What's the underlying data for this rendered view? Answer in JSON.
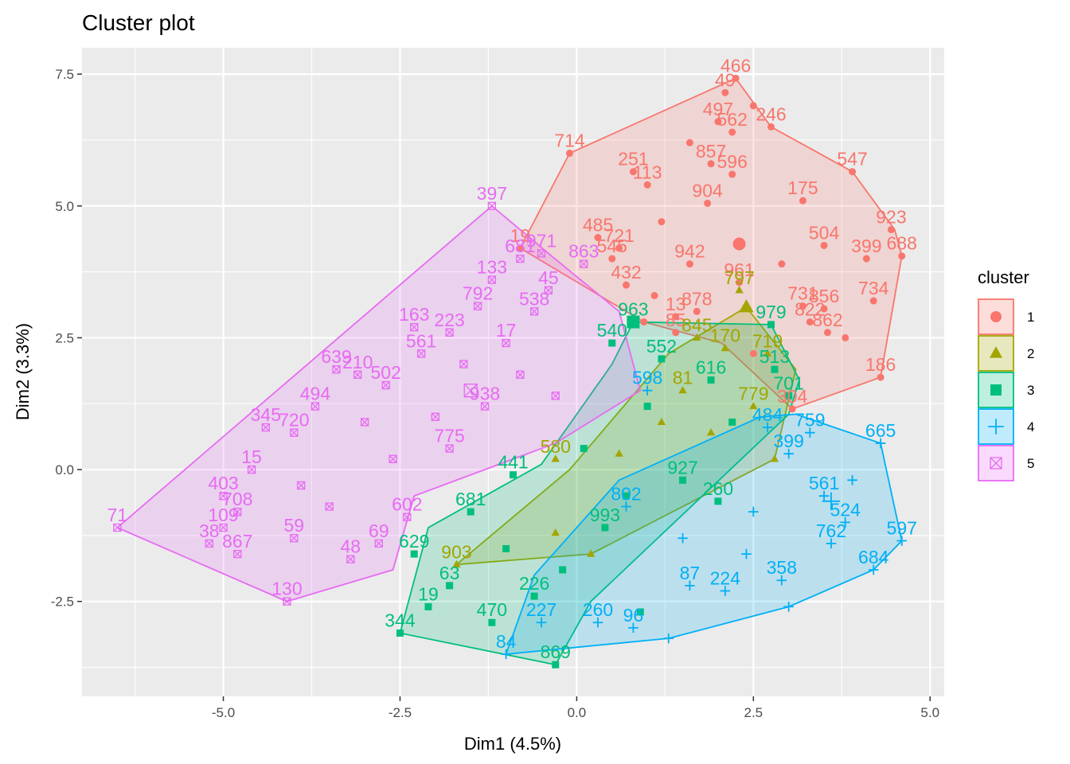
{
  "chart_data": {
    "type": "scatter",
    "title": "Cluster plot",
    "xlabel": "Dim1 (4.5%)",
    "ylabel": "Dim2 (3.3%)",
    "xlim": [
      -7.0,
      5.2
    ],
    "ylim": [
      -4.3,
      8.0
    ],
    "xticks": [
      -5.0,
      -2.5,
      0.0,
      2.5,
      5.0
    ],
    "xtick_labels": [
      "-5.0",
      "-2.5",
      "0.0",
      "2.5",
      "5.0"
    ],
    "yticks": [
      -2.5,
      0.0,
      2.5,
      5.0,
      7.5
    ],
    "ytick_labels": [
      "-2.5",
      "0.0",
      "2.5",
      "5.0",
      "7.5"
    ],
    "grid": true,
    "legend": {
      "title": "cluster",
      "placement": "right",
      "entries": [
        {
          "label": "1",
          "color": "#F8766D",
          "shape": "circle"
        },
        {
          "label": "2",
          "color": "#A3A500",
          "shape": "triangle"
        },
        {
          "label": "3",
          "color": "#00BF7D",
          "shape": "square"
        },
        {
          "label": "4",
          "color": "#00B0F6",
          "shape": "plus"
        },
        {
          "label": "5",
          "color": "#E76BF3",
          "shape": "boxed-x"
        }
      ]
    },
    "series": [
      {
        "name": "1",
        "color": "#F8766D",
        "centroid": [
          2.3,
          4.28
        ],
        "hull": [
          [
            2.25,
            7.42
          ],
          [
            2.75,
            6.5
          ],
          [
            3.9,
            5.65
          ],
          [
            4.5,
            4.55
          ],
          [
            4.6,
            4.05
          ],
          [
            4.3,
            1.75
          ],
          [
            3.05,
            1.15
          ],
          [
            2.05,
            2.4
          ],
          [
            0.95,
            2.8
          ],
          [
            -0.8,
            4.2
          ],
          [
            -0.1,
            6.0
          ]
        ],
        "points": [
          {
            "x": 2.25,
            "y": 7.42,
            "label": "466"
          },
          {
            "x": 2.1,
            "y": 7.15,
            "label": "49"
          },
          {
            "x": 2.75,
            "y": 6.5,
            "label": "246"
          },
          {
            "x": -0.1,
            "y": 6.0,
            "label": "714"
          },
          {
            "x": 2.0,
            "y": 6.6,
            "label": "497"
          },
          {
            "x": 2.2,
            "y": 6.4,
            "label": "562"
          },
          {
            "x": 0.8,
            "y": 5.65,
            "label": "251"
          },
          {
            "x": 1.0,
            "y": 5.4,
            "label": "113"
          },
          {
            "x": 1.9,
            "y": 5.8,
            "label": "857"
          },
          {
            "x": 2.2,
            "y": 5.6,
            "label": "596"
          },
          {
            "x": 3.9,
            "y": 5.65,
            "label": "547"
          },
          {
            "x": 3.2,
            "y": 5.1,
            "label": "175"
          },
          {
            "x": 1.85,
            "y": 5.05,
            "label": "904"
          },
          {
            "x": 4.45,
            "y": 4.55,
            "label": "923"
          },
          {
            "x": 4.6,
            "y": 4.05,
            "label": "688"
          },
          {
            "x": 3.5,
            "y": 4.25,
            "label": "504"
          },
          {
            "x": 4.1,
            "y": 4.0,
            "label": "399"
          },
          {
            "x": 0.3,
            "y": 4.4,
            "label": "485"
          },
          {
            "x": 0.6,
            "y": 4.2,
            "label": "721"
          },
          {
            "x": 0.5,
            "y": 4.0,
            "label": "545"
          },
          {
            "x": -0.8,
            "y": 4.2,
            "label": "19"
          },
          {
            "x": 1.6,
            "y": 3.9,
            "label": "942"
          },
          {
            "x": 2.3,
            "y": 3.55,
            "label": "961"
          },
          {
            "x": 4.2,
            "y": 3.2,
            "label": "734"
          },
          {
            "x": 0.7,
            "y": 3.5,
            "label": "432"
          },
          {
            "x": 3.2,
            "y": 3.1,
            "label": "731"
          },
          {
            "x": 3.5,
            "y": 3.05,
            "label": "856"
          },
          {
            "x": 3.3,
            "y": 2.8,
            "label": "822"
          },
          {
            "x": 3.55,
            "y": 2.6,
            "label": "862"
          },
          {
            "x": 1.7,
            "y": 3.0,
            "label": "878"
          },
          {
            "x": 1.4,
            "y": 2.9,
            "label": "13"
          },
          {
            "x": 1.4,
            "y": 2.6,
            "label": "85"
          },
          {
            "x": 4.3,
            "y": 1.75,
            "label": "186"
          },
          {
            "x": 3.05,
            "y": 1.15,
            "label": "304"
          },
          {
            "x": 0.95,
            "y": 2.8,
            "label": ""
          },
          {
            "x": 2.5,
            "y": 2.2,
            "label": ""
          },
          {
            "x": 1.6,
            "y": 6.2,
            "label": ""
          },
          {
            "x": 2.5,
            "y": 6.9,
            "label": ""
          },
          {
            "x": 1.2,
            "y": 4.7,
            "label": ""
          },
          {
            "x": 3.8,
            "y": 2.5,
            "label": ""
          },
          {
            "x": 2.9,
            "y": 3.9,
            "label": ""
          },
          {
            "x": 1.1,
            "y": 3.3,
            "label": ""
          }
        ]
      },
      {
        "name": "2",
        "color": "#A3A500",
        "centroid": [
          2.4,
          3.08
        ],
        "hull": [
          [
            2.4,
            3.08
          ],
          [
            3.1,
            1.9
          ],
          [
            2.8,
            0.2
          ],
          [
            0.2,
            -1.6
          ],
          [
            -1.7,
            -1.8
          ],
          [
            -0.1,
            0.0
          ],
          [
            1.3,
            2.2
          ]
        ],
        "points": [
          {
            "x": 2.3,
            "y": 3.4,
            "label": "797"
          },
          {
            "x": 1.7,
            "y": 2.5,
            "label": "845"
          },
          {
            "x": 2.1,
            "y": 2.3,
            "label": "170"
          },
          {
            "x": 2.7,
            "y": 2.2,
            "label": "719"
          },
          {
            "x": 1.5,
            "y": 1.5,
            "label": "81"
          },
          {
            "x": 2.5,
            "y": 1.2,
            "label": "779"
          },
          {
            "x": 1.2,
            "y": 0.9,
            "label": ""
          },
          {
            "x": 0.6,
            "y": 0.3,
            "label": ""
          },
          {
            "x": -0.3,
            "y": -1.2,
            "label": ""
          },
          {
            "x": -1.7,
            "y": -1.8,
            "label": "903"
          },
          {
            "x": 0.2,
            "y": -1.6,
            "label": ""
          },
          {
            "x": -0.3,
            "y": 0.2,
            "label": "580"
          },
          {
            "x": 1.9,
            "y": 0.7,
            "label": ""
          },
          {
            "x": 2.8,
            "y": 0.2,
            "label": ""
          }
        ]
      },
      {
        "name": "3",
        "color": "#00BF7D",
        "centroid": [
          0.8,
          2.8
        ],
        "hull": [
          [
            0.8,
            2.8
          ],
          [
            2.75,
            2.75
          ],
          [
            3.15,
            1.7
          ],
          [
            3.0,
            1.05
          ],
          [
            0.2,
            -2.5
          ],
          [
            -0.3,
            -3.7
          ],
          [
            -2.5,
            -3.1
          ],
          [
            -2.1,
            -1.1
          ],
          [
            -0.5,
            0.1
          ],
          [
            0.5,
            2.0
          ]
        ],
        "points": [
          {
            "x": 2.75,
            "y": 2.75,
            "label": "979"
          },
          {
            "x": 0.8,
            "y": 2.8,
            "label": "963"
          },
          {
            "x": 0.5,
            "y": 2.4,
            "label": "540"
          },
          {
            "x": 1.2,
            "y": 2.1,
            "label": "552"
          },
          {
            "x": 2.8,
            "y": 1.9,
            "label": "513"
          },
          {
            "x": 3.0,
            "y": 1.4,
            "label": "701"
          },
          {
            "x": 1.9,
            "y": 1.7,
            "label": "616"
          },
          {
            "x": 0.1,
            "y": 0.4,
            "label": ""
          },
          {
            "x": 1.5,
            "y": -0.2,
            "label": "927"
          },
          {
            "x": 0.4,
            "y": -1.1,
            "label": "993"
          },
          {
            "x": -1.5,
            "y": -0.8,
            "label": "681"
          },
          {
            "x": -0.9,
            "y": -0.1,
            "label": "441"
          },
          {
            "x": -2.5,
            "y": -3.1,
            "label": "344"
          },
          {
            "x": -2.1,
            "y": -2.6,
            "label": "19"
          },
          {
            "x": -0.3,
            "y": -3.7,
            "label": "869"
          },
          {
            "x": -2.3,
            "y": -1.6,
            "label": "629"
          },
          {
            "x": -1.8,
            "y": -2.2,
            "label": "63"
          },
          {
            "x": -1.2,
            "y": -2.9,
            "label": "470"
          },
          {
            "x": -0.6,
            "y": -2.4,
            "label": "226"
          },
          {
            "x": 0.9,
            "y": -2.7,
            "label": ""
          },
          {
            "x": 2.2,
            "y": 0.9,
            "label": ""
          },
          {
            "x": 1.0,
            "y": 1.2,
            "label": ""
          },
          {
            "x": -0.2,
            "y": -1.9,
            "label": ""
          },
          {
            "x": 0.7,
            "y": -0.5,
            "label": ""
          },
          {
            "x": -1.0,
            "y": -1.5,
            "label": ""
          },
          {
            "x": 2.0,
            "y": -0.6,
            "label": "260"
          }
        ]
      },
      {
        "name": "4",
        "color": "#00B0F6",
        "centroid": [
          3.6,
          -0.6
        ],
        "hull": [
          [
            3.1,
            1.05
          ],
          [
            4.3,
            0.5
          ],
          [
            4.6,
            -1.35
          ],
          [
            4.2,
            -1.9
          ],
          [
            3.0,
            -2.6
          ],
          [
            1.3,
            -3.2
          ],
          [
            -1.0,
            -3.5
          ],
          [
            -0.6,
            -2.0
          ],
          [
            0.6,
            -0.2
          ],
          [
            2.6,
            1.0
          ]
        ],
        "points": [
          {
            "x": 4.3,
            "y": 0.5,
            "label": "665"
          },
          {
            "x": 3.3,
            "y": 0.7,
            "label": "759"
          },
          {
            "x": 3.0,
            "y": 0.3,
            "label": "399"
          },
          {
            "x": 2.7,
            "y": 0.8,
            "label": "484"
          },
          {
            "x": 4.6,
            "y": -1.35,
            "label": "597"
          },
          {
            "x": 4.2,
            "y": -1.9,
            "label": "684"
          },
          {
            "x": 3.8,
            "y": -1.0,
            "label": "524"
          },
          {
            "x": 3.5,
            "y": -0.5,
            "label": "561"
          },
          {
            "x": 3.6,
            "y": -1.4,
            "label": "762"
          },
          {
            "x": 2.9,
            "y": -2.1,
            "label": "358"
          },
          {
            "x": 2.1,
            "y": -2.3,
            "label": "224"
          },
          {
            "x": 1.6,
            "y": -2.2,
            "label": "87"
          },
          {
            "x": 0.3,
            "y": -2.9,
            "label": "260"
          },
          {
            "x": 0.8,
            "y": -3.0,
            "label": "96"
          },
          {
            "x": -1.0,
            "y": -3.5,
            "label": "84"
          },
          {
            "x": -0.5,
            "y": -2.9,
            "label": "227"
          },
          {
            "x": 3.0,
            "y": -2.6,
            "label": ""
          },
          {
            "x": 1.3,
            "y": -3.2,
            "label": ""
          },
          {
            "x": 1.0,
            "y": 1.5,
            "label": "598"
          },
          {
            "x": 2.5,
            "y": -0.8,
            "label": ""
          },
          {
            "x": 1.5,
            "y": -1.3,
            "label": ""
          },
          {
            "x": 0.7,
            "y": -0.7,
            "label": "802"
          },
          {
            "x": 3.9,
            "y": -0.2,
            "label": ""
          },
          {
            "x": 2.4,
            "y": -1.6,
            "label": ""
          }
        ]
      },
      {
        "name": "5",
        "color": "#E76BF3",
        "centroid": [
          -1.5,
          1.5
        ],
        "hull": [
          [
            -1.2,
            5.0
          ],
          [
            -0.4,
            4.1
          ],
          [
            0.6,
            3.0
          ],
          [
            0.9,
            1.5
          ],
          [
            -0.3,
            0.5
          ],
          [
            -2.3,
            -0.5
          ],
          [
            -2.6,
            -1.9
          ],
          [
            -4.1,
            -2.5
          ],
          [
            -6.5,
            -1.1
          ]
        ],
        "points": [
          {
            "x": -1.2,
            "y": 5.0,
            "label": "397"
          },
          {
            "x": -0.5,
            "y": 4.1,
            "label": "971"
          },
          {
            "x": -0.8,
            "y": 4.0,
            "label": "681"
          },
          {
            "x": 0.1,
            "y": 3.9,
            "label": "863"
          },
          {
            "x": -1.2,
            "y": 3.6,
            "label": "133"
          },
          {
            "x": -1.4,
            "y": 3.1,
            "label": "792"
          },
          {
            "x": -0.4,
            "y": 3.4,
            "label": "45"
          },
          {
            "x": -0.6,
            "y": 3.0,
            "label": "538"
          },
          {
            "x": -2.3,
            "y": 2.7,
            "label": "163"
          },
          {
            "x": -1.8,
            "y": 2.6,
            "label": "223"
          },
          {
            "x": -2.2,
            "y": 2.2,
            "label": "561"
          },
          {
            "x": -1.0,
            "y": 2.4,
            "label": "17"
          },
          {
            "x": -3.4,
            "y": 1.9,
            "label": "639"
          },
          {
            "x": -3.1,
            "y": 1.8,
            "label": "210"
          },
          {
            "x": -3.7,
            "y": 1.2,
            "label": "494"
          },
          {
            "x": -2.7,
            "y": 1.6,
            "label": "502"
          },
          {
            "x": -4.4,
            "y": 0.8,
            "label": "345"
          },
          {
            "x": -4.0,
            "y": 0.7,
            "label": "720"
          },
          {
            "x": -1.3,
            "y": 1.2,
            "label": "938"
          },
          {
            "x": -1.8,
            "y": 0.4,
            "label": "775"
          },
          {
            "x": -4.6,
            "y": 0.0,
            "label": "15"
          },
          {
            "x": -5.0,
            "y": -0.5,
            "label": "403"
          },
          {
            "x": -4.8,
            "y": -0.8,
            "label": "708"
          },
          {
            "x": -5.0,
            "y": -1.1,
            "label": "109"
          },
          {
            "x": -5.2,
            "y": -1.4,
            "label": "38"
          },
          {
            "x": -4.8,
            "y": -1.6,
            "label": "867"
          },
          {
            "x": -6.5,
            "y": -1.1,
            "label": "71"
          },
          {
            "x": -4.1,
            "y": -2.5,
            "label": "130"
          },
          {
            "x": -3.2,
            "y": -1.7,
            "label": "48"
          },
          {
            "x": -2.8,
            "y": -1.4,
            "label": "69"
          },
          {
            "x": -4.0,
            "y": -1.3,
            "label": "59"
          },
          {
            "x": -3.5,
            "y": -0.7,
            "label": ""
          },
          {
            "x": -2.6,
            "y": 0.2,
            "label": ""
          },
          {
            "x": -2.0,
            "y": 1.0,
            "label": ""
          },
          {
            "x": -0.8,
            "y": 1.8,
            "label": ""
          },
          {
            "x": -0.3,
            "y": 1.4,
            "label": ""
          },
          {
            "x": -1.6,
            "y": 2.0,
            "label": ""
          },
          {
            "x": -3.0,
            "y": 0.9,
            "label": ""
          },
          {
            "x": -3.9,
            "y": -0.3,
            "label": ""
          },
          {
            "x": -2.4,
            "y": -0.9,
            "label": "602"
          }
        ]
      }
    ]
  }
}
